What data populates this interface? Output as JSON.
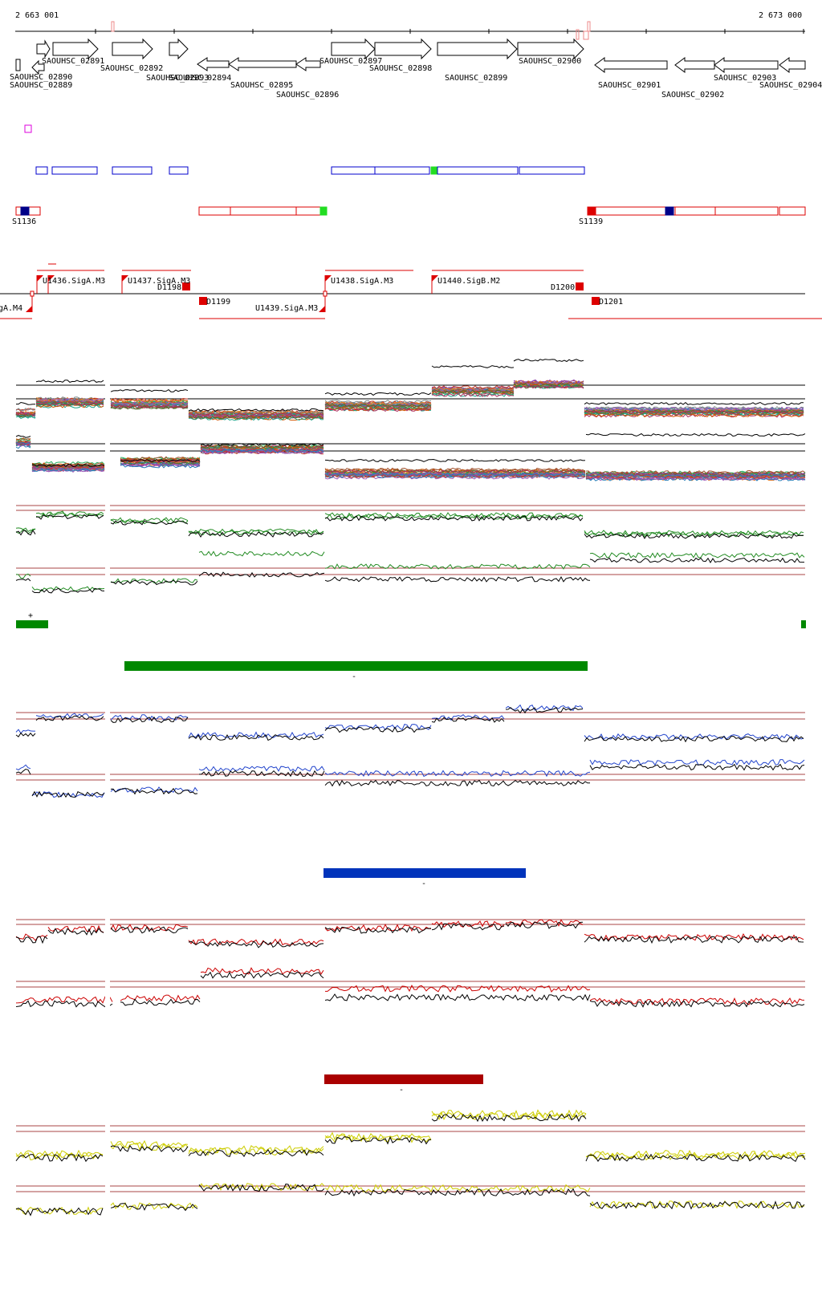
{
  "axis": {
    "start_label": "2 663 001",
    "end_label": "2 673 000"
  },
  "genes": [
    "SAOUHSC_02889",
    "SAOUHSC_02890",
    "SAOUHSC_02891",
    "SAOUHSC_02892",
    "SAOUHSC_02893",
    "SAOUHSC_02894",
    "SAOUHSC_02895",
    "SAOUHSC_02896",
    "SAOUHSC_02897",
    "SAOUHSC_02898",
    "SAOUHSC_02899",
    "SAOUHSC_02900",
    "SAOUHSC_02901",
    "SAOUHSC_02902",
    "SAOUHSC_02903",
    "SAOUHSC_02904"
  ],
  "segment_labels": {
    "s1136": "S1136",
    "s1139": "S1139"
  },
  "promoters": {
    "u1436": "U1436.SigA.M3",
    "u1437": "U1437.SigA.M3",
    "u1438": "U1438.SigA.M3",
    "u1439": "U1439.SigA.M3",
    "u1440": "U1440.SigB.M2",
    "left_clip": "gA.M4",
    "d1198": "D1198",
    "d1199": "D1199",
    "d1200": "D1200",
    "d1201": "D1201"
  },
  "strands": {
    "plus": "+",
    "minus_green": "-",
    "minus_blue": "-",
    "minus_red": "-"
  },
  "colors": {
    "gene_outline": "#000000",
    "tu_plus": "#0000cc",
    "tu_minus": "#dd0000",
    "green_bar": "#008800",
    "blue_bar": "#0033bb",
    "red_bar": "#aa0000",
    "yellow_trace": "#cccc00"
  }
}
